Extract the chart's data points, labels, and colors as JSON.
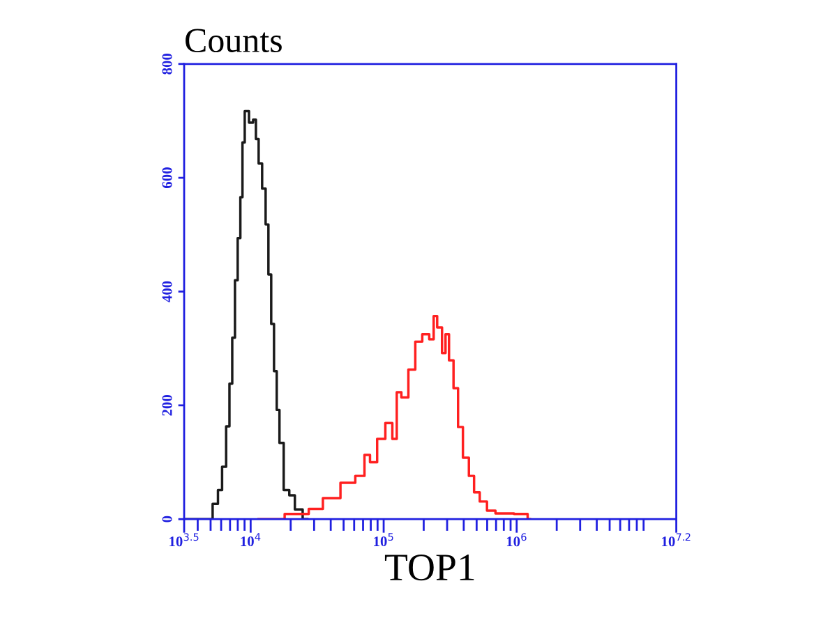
{
  "chart_data": {
    "type": "step",
    "ylabel": "Counts",
    "xlabel": "TOP1",
    "log": "x",
    "grid": false,
    "xlim": [
      3162.28,
      15848932
    ],
    "ylim": [
      0,
      800
    ],
    "xticks": [
      {
        "value": 3162.28,
        "label": "10$^{3.5}$"
      },
      {
        "value": 10000,
        "label": "10$^{4}$"
      },
      {
        "value": 100000,
        "label": "10$^{5}$"
      },
      {
        "value": 1000000,
        "label": "10$^{6}$"
      },
      {
        "value": 15848932,
        "label": "10$^{7.2}$"
      }
    ],
    "yticks": [
      0,
      200,
      400,
      600,
      800
    ],
    "series": [
      {
        "color": "#1a1a1a",
        "x": [
          3170,
          4875,
          5483,
          5875,
          6324,
          6761,
          7096,
          7447,
          7798,
          8185,
          8551,
          8810,
          9247,
          10190,
          10690,
          11220,
          11750,
          12650,
          13270,
          13930,
          14620,
          15350,
          16070,
          16870,
          18580,
          20460,
          22540,
          26670
        ],
        "values": [
          0,
          0,
          27,
          51,
          92,
          163,
          238,
          319,
          420,
          494,
          566,
          662,
          717,
          697,
          702,
          668,
          625,
          581,
          518,
          430,
          343,
          260,
          192,
          134,
          51,
          42,
          17,
          0
        ]
      },
      {
        "color": "#ff2020",
        "x": [
          11480,
          24550,
          30130,
          39720,
          54950,
          67450,
          76030,
          81850,
          96830,
          109100,
          123300,
          127600,
          144200,
          162600,
          183200,
          207000,
          233300,
          242100,
          263000,
          286400,
          297200,
          322800,
          347500,
          377600,
          411100,
          463400,
          493200,
          562300,
          633900,
          751600,
          1159000,
          1259000
        ],
        "values": [
          0,
          9,
          18,
          37,
          64,
          76,
          113,
          100,
          141,
          169,
          141,
          223,
          214,
          263,
          312,
          325,
          316,
          357,
          337,
          292,
          325,
          279,
          230,
          162,
          108,
          76,
          47,
          31,
          15,
          10,
          9,
          0
        ]
      }
    ]
  }
}
